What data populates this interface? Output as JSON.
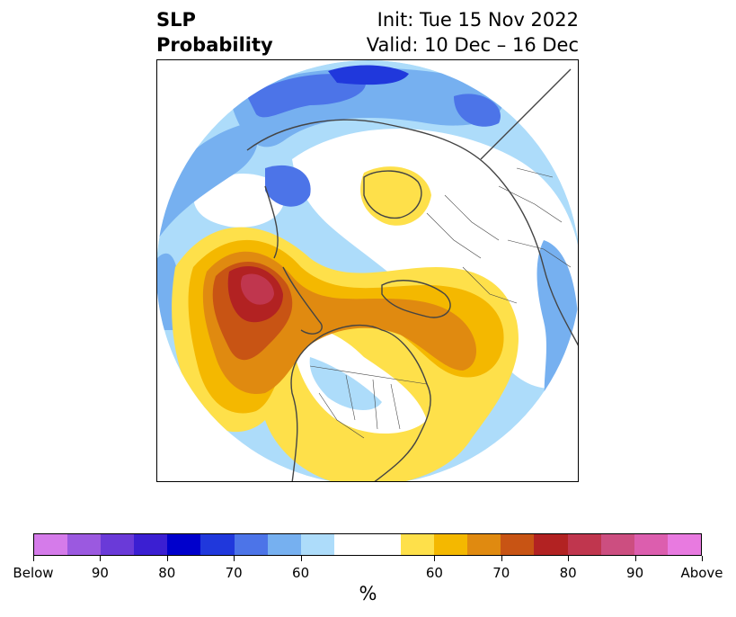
{
  "title": {
    "left_line1": "SLP",
    "left_line2": "Probability",
    "right_line1": "Init: Tue 15 Nov 2022",
    "right_line2": "Valid: 10 Dec – 16 Dec"
  },
  "map": {
    "projection": "polar stereographic, North Pole",
    "features": [
      "coastlines",
      "country borders",
      "US state borders",
      "Canadian province borders"
    ]
  },
  "colorbar": {
    "colors": [
      "#d57bea",
      "#9b59e0",
      "#6a3ad8",
      "#3b1fd2",
      "#0000cc",
      "#2038dc",
      "#4c74e8",
      "#76b0f0",
      "#addcfa",
      "#ffffff",
      "#fee04a",
      "#f4b800",
      "#e08a10",
      "#c85414",
      "#b22222",
      "#c0364e",
      "#cc4e80",
      "#dc5eae",
      "#e87ae0"
    ],
    "tick_labels": [
      "Below",
      "90",
      "80",
      "70",
      "60",
      "60",
      "70",
      "80",
      "90",
      "Above"
    ],
    "unit": "%"
  },
  "colors": {
    "below_60_70": "#addcfa",
    "below_70_80": "#76b0f0",
    "below_80_90": "#4c74e8",
    "above_50_60": "#fee04a",
    "above_60_70": "#f4b800",
    "above_70_80": "#e08a10",
    "above_80_90": "#c85414",
    "above_90_95": "#b22222",
    "above_95": "#c0364e",
    "coast": "#444444"
  }
}
